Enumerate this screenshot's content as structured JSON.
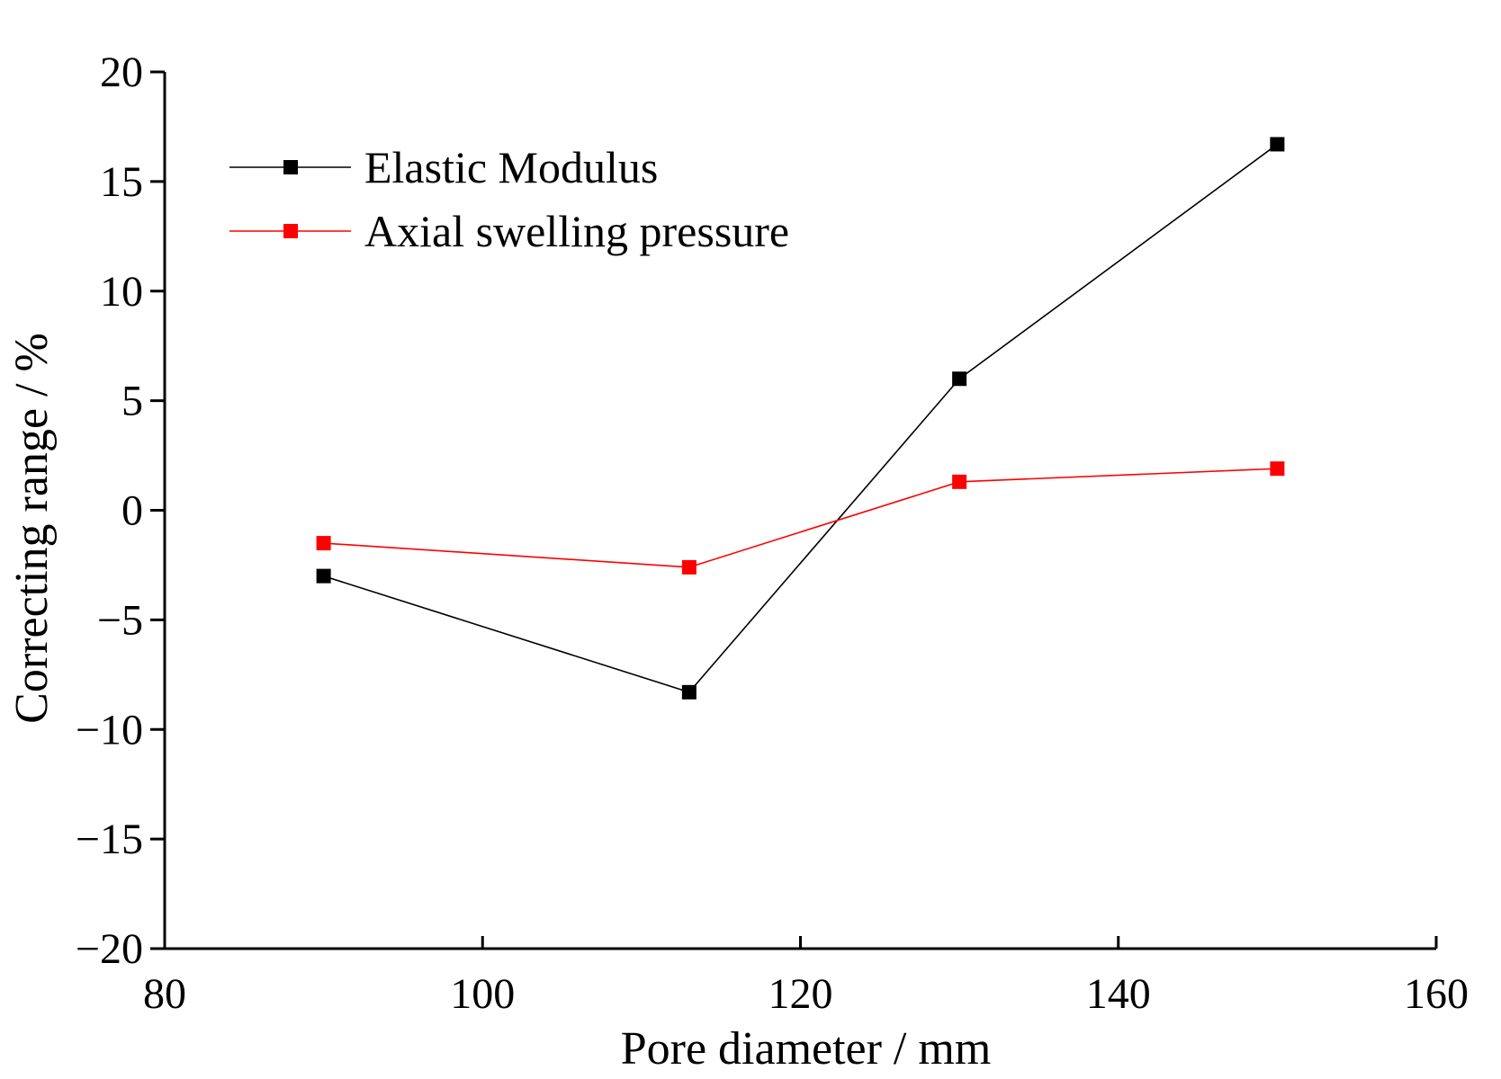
{
  "chart_data": {
    "type": "line",
    "title": "",
    "xlabel": "Pore diameter / mm",
    "ylabel": "Correcting range / %",
    "xlim": [
      80,
      160
    ],
    "ylim": [
      -20,
      20
    ],
    "x_ticks": [
      80,
      100,
      120,
      140,
      160
    ],
    "y_ticks": [
      -20,
      -15,
      -10,
      -5,
      0,
      5,
      10,
      15,
      20
    ],
    "x_tick_labels": [
      "80",
      "100",
      "120",
      "140",
      "160"
    ],
    "y_tick_labels": [
      "−20",
      "−15",
      "−10",
      "−5",
      "0",
      "5",
      "10",
      "15",
      "20"
    ],
    "grid": false,
    "legend_position": "top-left",
    "series": [
      {
        "name": "Elastic Modulus",
        "color": "#000000",
        "x": [
          90,
          113,
          130,
          150
        ],
        "y": [
          -3.0,
          -8.3,
          6.0,
          16.7
        ]
      },
      {
        "name": "Axial swelling pressure",
        "color": "#ff0000",
        "x": [
          90,
          113,
          130,
          150
        ],
        "y": [
          -1.5,
          -2.6,
          1.3,
          1.9
        ]
      }
    ]
  }
}
